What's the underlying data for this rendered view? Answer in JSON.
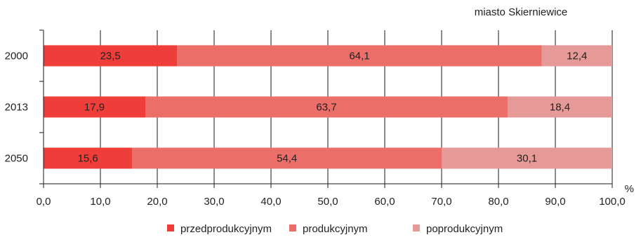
{
  "chart_data": {
    "type": "bar",
    "orientation": "horizontal",
    "stacked": true,
    "annotation": "miasto Skierniewice",
    "unit_label": "%",
    "categories": [
      "2000",
      "2013",
      "2050"
    ],
    "series": [
      {
        "name": "przedprodukcyjnym",
        "values": [
          23.5,
          17.9,
          15.6
        ],
        "labels": [
          "23,5",
          "17,9",
          "15,6"
        ],
        "color": "#ef3e39"
      },
      {
        "name": "produkcyjnym",
        "values": [
          64.1,
          63.7,
          54.4
        ],
        "labels": [
          "64,1",
          "63,7",
          "54,4"
        ],
        "color": "#ec6e69"
      },
      {
        "name": "poprodukcyjnym",
        "values": [
          12.4,
          18.4,
          30.1
        ],
        "labels": [
          "12,4",
          "18,4",
          "30,1"
        ],
        "color": "#e69a98"
      }
    ],
    "xlim": [
      0,
      100
    ],
    "xticks": [
      "0,0",
      "10,0",
      "20,0",
      "30,0",
      "40,0",
      "50,0",
      "60,0",
      "70,0",
      "80,0",
      "90,0",
      "100,0"
    ],
    "grid": true,
    "legend": "bottom"
  }
}
